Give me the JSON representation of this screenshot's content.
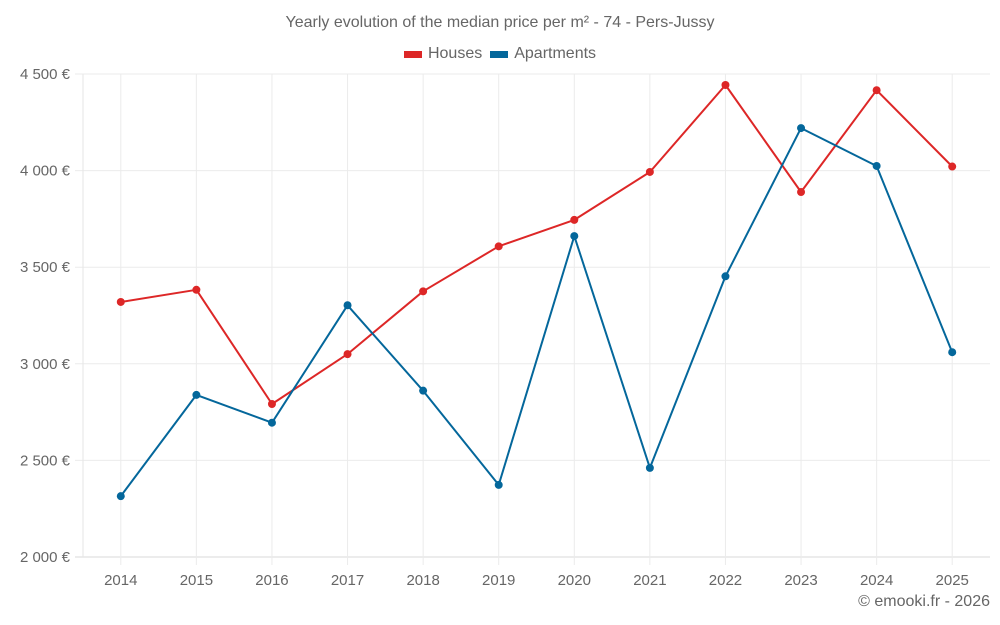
{
  "chart_data": {
    "type": "line",
    "title": "Yearly evolution of the median price per m² - 74 - Pers-Jussy",
    "xlabel": "",
    "ylabel": "",
    "categories": [
      "2014",
      "2015",
      "2016",
      "2017",
      "2018",
      "2019",
      "2020",
      "2021",
      "2022",
      "2023",
      "2024",
      "2025"
    ],
    "ylim": [
      2000,
      4500
    ],
    "yticks": [
      2000,
      2500,
      3000,
      3500,
      4000,
      4500
    ],
    "ytick_labels": [
      "2 000 €",
      "2 500 €",
      "3 000 €",
      "3 500 €",
      "4 000 €",
      "4 500 €"
    ],
    "grid": true,
    "legend_position": "top-center",
    "series": [
      {
        "name": "Houses",
        "color": "#dd2727",
        "values": [
          3320,
          3383,
          2792,
          3050,
          3375,
          3608,
          3745,
          3993,
          4443,
          3889,
          4416,
          4021
        ]
      },
      {
        "name": "Apartments",
        "color": "#04679b",
        "values": [
          2315,
          2839,
          2695,
          3303,
          2861,
          2373,
          3661,
          2461,
          3453,
          4220,
          4024,
          3060
        ]
      }
    ]
  },
  "footer": {
    "credit": "© emooki.fr - 2026"
  }
}
